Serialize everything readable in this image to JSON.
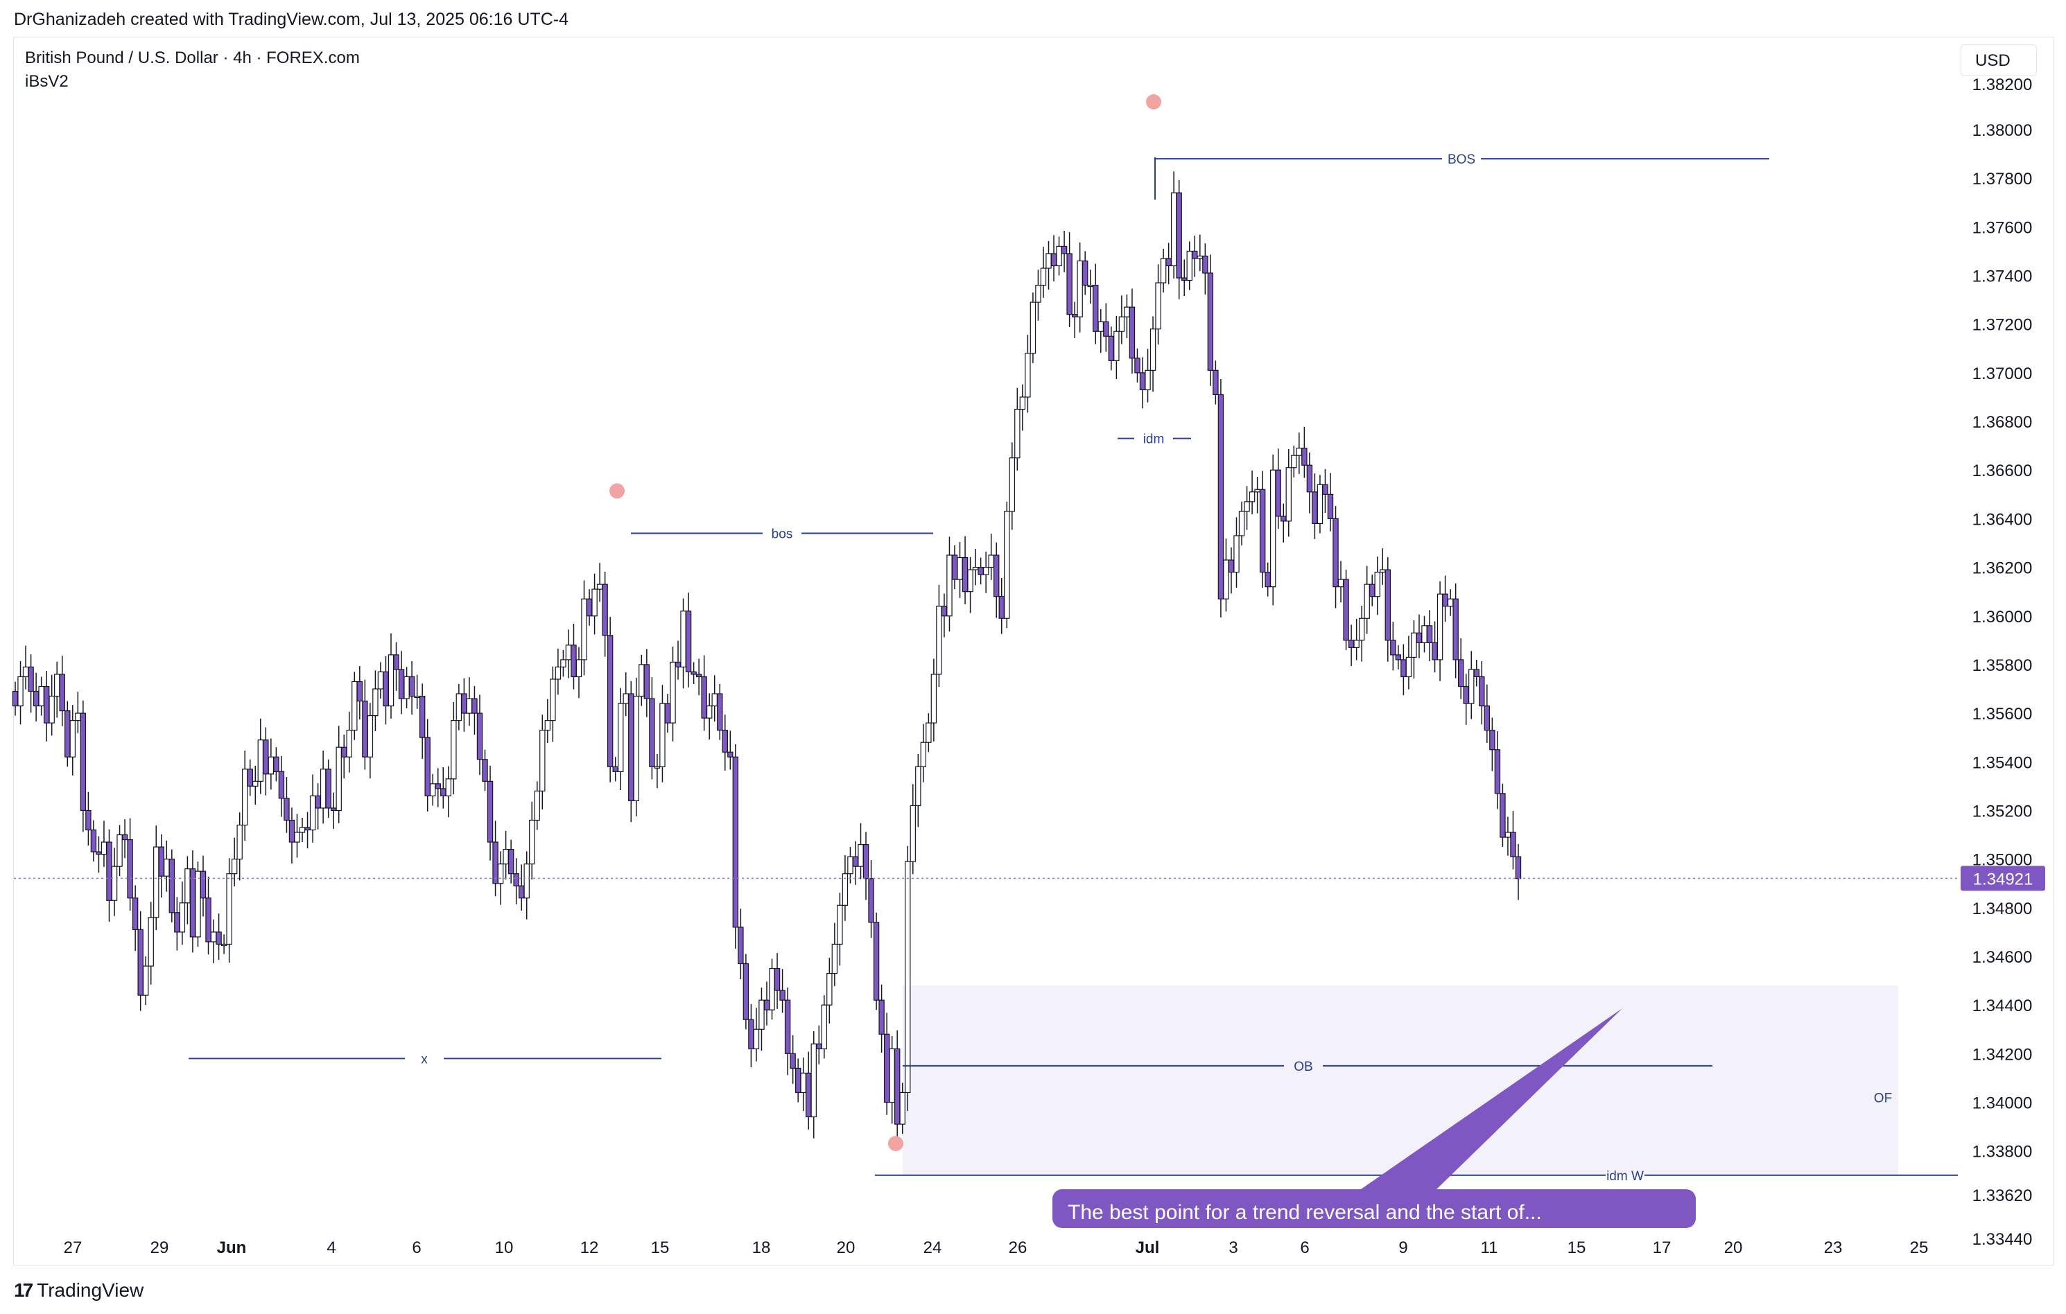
{
  "header": {
    "attribution": "DrGhanizadeh created with TradingView.com, Jul 13, 2025 06:16 UTC-4"
  },
  "chart_header": {
    "symbol": "British Pound / U.S. Dollar · 4h · FOREX.com",
    "indicator": "iBsV2",
    "currency": "USD"
  },
  "footer": {
    "brand": "TradingView",
    "logo_glyph": "17"
  },
  "chart_data": {
    "type": "candlestick",
    "symbol": "GBPUSD",
    "timeframe": "4h",
    "ylim": [
      1.3338,
      1.383
    ],
    "y_ticks": [
      "1.38200",
      "1.38000",
      "1.37800",
      "1.37600",
      "1.37400",
      "1.37200",
      "1.37000",
      "1.36800",
      "1.36600",
      "1.36400",
      "1.36200",
      "1.36000",
      "1.35800",
      "1.35600",
      "1.35400",
      "1.35200",
      "1.35000",
      "1.34800",
      "1.34600",
      "1.34400",
      "1.34200",
      "1.34000",
      "1.33800",
      "1.33620",
      "1.33440"
    ],
    "x_ticks": [
      "27",
      "29",
      "Jun",
      "4",
      "6",
      "10",
      "12",
      "15",
      "18",
      "20",
      "24",
      "26",
      "Jul",
      "3",
      "6",
      "9",
      "11",
      "15",
      "17",
      "20",
      "23",
      "25"
    ],
    "last_price": "1.34921",
    "candle_color": "#7e57c2",
    "candle_outline": "#131722",
    "series_close": [
      1.3563,
      1.3575,
      1.3579,
      1.3569,
      1.3563,
      1.3571,
      1.3556,
      1.3567,
      1.3576,
      1.3561,
      1.3542,
      1.3557,
      1.356,
      1.352,
      1.3512,
      1.3503,
      1.3502,
      1.3507,
      1.3483,
      1.3497,
      1.351,
      1.3508,
      1.3484,
      1.3471,
      1.3444,
      1.3456,
      1.3476,
      1.3505,
      1.3493,
      1.35,
      1.3478,
      1.347,
      1.3482,
      1.3496,
      1.3468,
      1.3495,
      1.3484,
      1.3466,
      1.347,
      1.3465,
      1.3465,
      1.3494,
      1.35,
      1.3514,
      1.3537,
      1.353,
      1.3532,
      1.3549,
      1.3535,
      1.3542,
      1.3536,
      1.3525,
      1.3516,
      1.3507,
      1.3511,
      1.3513,
      1.3512,
      1.3526,
      1.3521,
      1.3537,
      1.3521,
      1.352,
      1.3546,
      1.3542,
      1.3553,
      1.3573,
      1.3565,
      1.3542,
      1.3559,
      1.357,
      1.3577,
      1.3563,
      1.3584,
      1.3578,
      1.3566,
      1.3575,
      1.3567,
      1.3567,
      1.355,
      1.3526,
      1.3531,
      1.3529,
      1.3526,
      1.3533,
      1.3557,
      1.3568,
      1.356,
      1.3566,
      1.356,
      1.3541,
      1.3532,
      1.3507,
      1.349,
      1.3498,
      1.3504,
      1.3494,
      1.3489,
      1.3484,
      1.3498,
      1.3516,
      1.3528,
      1.3553,
      1.3557,
      1.3574,
      1.3579,
      1.3582,
      1.3588,
      1.3575,
      1.3582,
      1.3607,
      1.36,
      1.3611,
      1.3613,
      1.3592,
      1.3538,
      1.3536,
      1.3564,
      1.3568,
      1.3524,
      1.3567,
      1.358,
      1.3566,
      1.3538,
      1.3538,
      1.3564,
      1.3556,
      1.3581,
      1.3579,
      1.3602,
      1.3577,
      1.3576,
      1.3575,
      1.3558,
      1.3563,
      1.3568,
      1.3553,
      1.3544,
      1.3542,
      1.3472,
      1.3457,
      1.3434,
      1.3422,
      1.343,
      1.3442,
      1.3438,
      1.3455,
      1.3446,
      1.3442,
      1.342,
      1.3414,
      1.3404,
      1.3412,
      1.3394,
      1.3424,
      1.3422,
      1.344,
      1.3453,
      1.3465,
      1.3481,
      1.3494,
      1.3501,
      1.3497,
      1.3506,
      1.3492,
      1.3474,
      1.3442,
      1.3428,
      1.34,
      1.3422,
      1.3391,
      1.3404,
      1.3499,
      1.3522,
      1.3538,
      1.3548,
      1.3556,
      1.3576,
      1.3604,
      1.36,
      1.3625,
      1.3615,
      1.3624,
      1.361,
      1.3619,
      1.362,
      1.3617,
      1.362,
      1.3625,
      1.3608,
      1.3599,
      1.3643,
      1.3665,
      1.3685,
      1.369,
      1.3708,
      1.3729,
      1.3736,
      1.3743,
      1.3749,
      1.3744,
      1.3752,
      1.3749,
      1.3724,
      1.3723,
      1.3746,
      1.3736,
      1.3736,
      1.3717,
      1.3721,
      1.3715,
      1.3705,
      1.3717,
      1.3723,
      1.3727,
      1.3706,
      1.37,
      1.3693,
      1.3701,
      1.3718,
      1.3737,
      1.3747,
      1.3744,
      1.3774,
      1.3739,
      1.3738,
      1.375,
      1.3747,
      1.3748,
      1.3741,
      1.3701,
      1.3691,
      1.3607,
      1.3623,
      1.3618,
      1.3633,
      1.3643,
      1.3647,
      1.3651,
      1.3652,
      1.3618,
      1.3612,
      1.366,
      1.3641,
      1.3639,
      1.3661,
      1.3666,
      1.3669,
      1.3662,
      1.3651,
      1.3638,
      1.3654,
      1.365,
      1.364,
      1.3612,
      1.3615,
      1.359,
      1.3587,
      1.359,
      1.3599,
      1.3613,
      1.3608,
      1.3618,
      1.3619,
      1.359,
      1.3584,
      1.3582,
      1.3575,
      1.3583,
      1.3593,
      1.3589,
      1.3596,
      1.3589,
      1.3582,
      1.3609,
      1.3604,
      1.3607,
      1.3582,
      1.3571,
      1.3564,
      1.3578,
      1.3575,
      1.3563,
      1.3553,
      1.3545,
      1.3527,
      1.3509,
      1.3511,
      1.3501,
      1.3492
    ],
    "annotations": [
      {
        "label": "BOS",
        "price": 1.3788
      },
      {
        "label": "bos",
        "price": 1.3634
      },
      {
        "label": "idm",
        "price": 1.3673
      },
      {
        "label": "x",
        "price": 1.3418
      },
      {
        "label": "OB",
        "price": 1.3415
      },
      {
        "label": "idm W",
        "price": 1.337
      },
      {
        "label": "OF",
        "price": 1.3402
      }
    ],
    "order_block_zone": {
      "top": 1.3448,
      "bottom": 1.337,
      "label": "OB"
    },
    "swing_points": [
      {
        "type": "high",
        "price": 1.38
      },
      {
        "type": "high",
        "price": 1.364
      },
      {
        "type": "low",
        "price": 1.3365
      }
    ],
    "callout": "The best point for a trend reversal and the start of...",
    "colors": {
      "annotation_line": "#2a3f8f",
      "swing_dot": "#f4a3a3",
      "zone_fill": "#f3f1fa",
      "price_line": "#9575cd",
      "price_badge": "#7e57c2",
      "callout_bg": "#7e57c2"
    }
  }
}
